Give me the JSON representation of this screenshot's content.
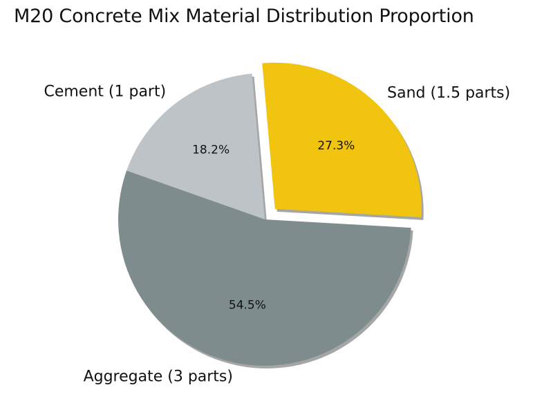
{
  "chart_data": {
    "type": "pie",
    "title": "M20 Concrete Mix Material Distribution Proportion",
    "start_angle_deg": 95,
    "direction": "counterclockwise",
    "slices": [
      {
        "label": "Cement (1 part)",
        "value": 18.2,
        "pct_label": "18.2%",
        "color": "#bdc3c7",
        "exploded": false
      },
      {
        "label": "Aggregate (3 parts)",
        "value": 54.5,
        "pct_label": "54.5%",
        "color": "#7f8c8d",
        "exploded": false
      },
      {
        "label": "Sand (1.5 parts)",
        "value": 27.3,
        "pct_label": "27.3%",
        "color": "#f1c40f",
        "exploded": true
      }
    ],
    "shadow": true,
    "legend": "none"
  }
}
